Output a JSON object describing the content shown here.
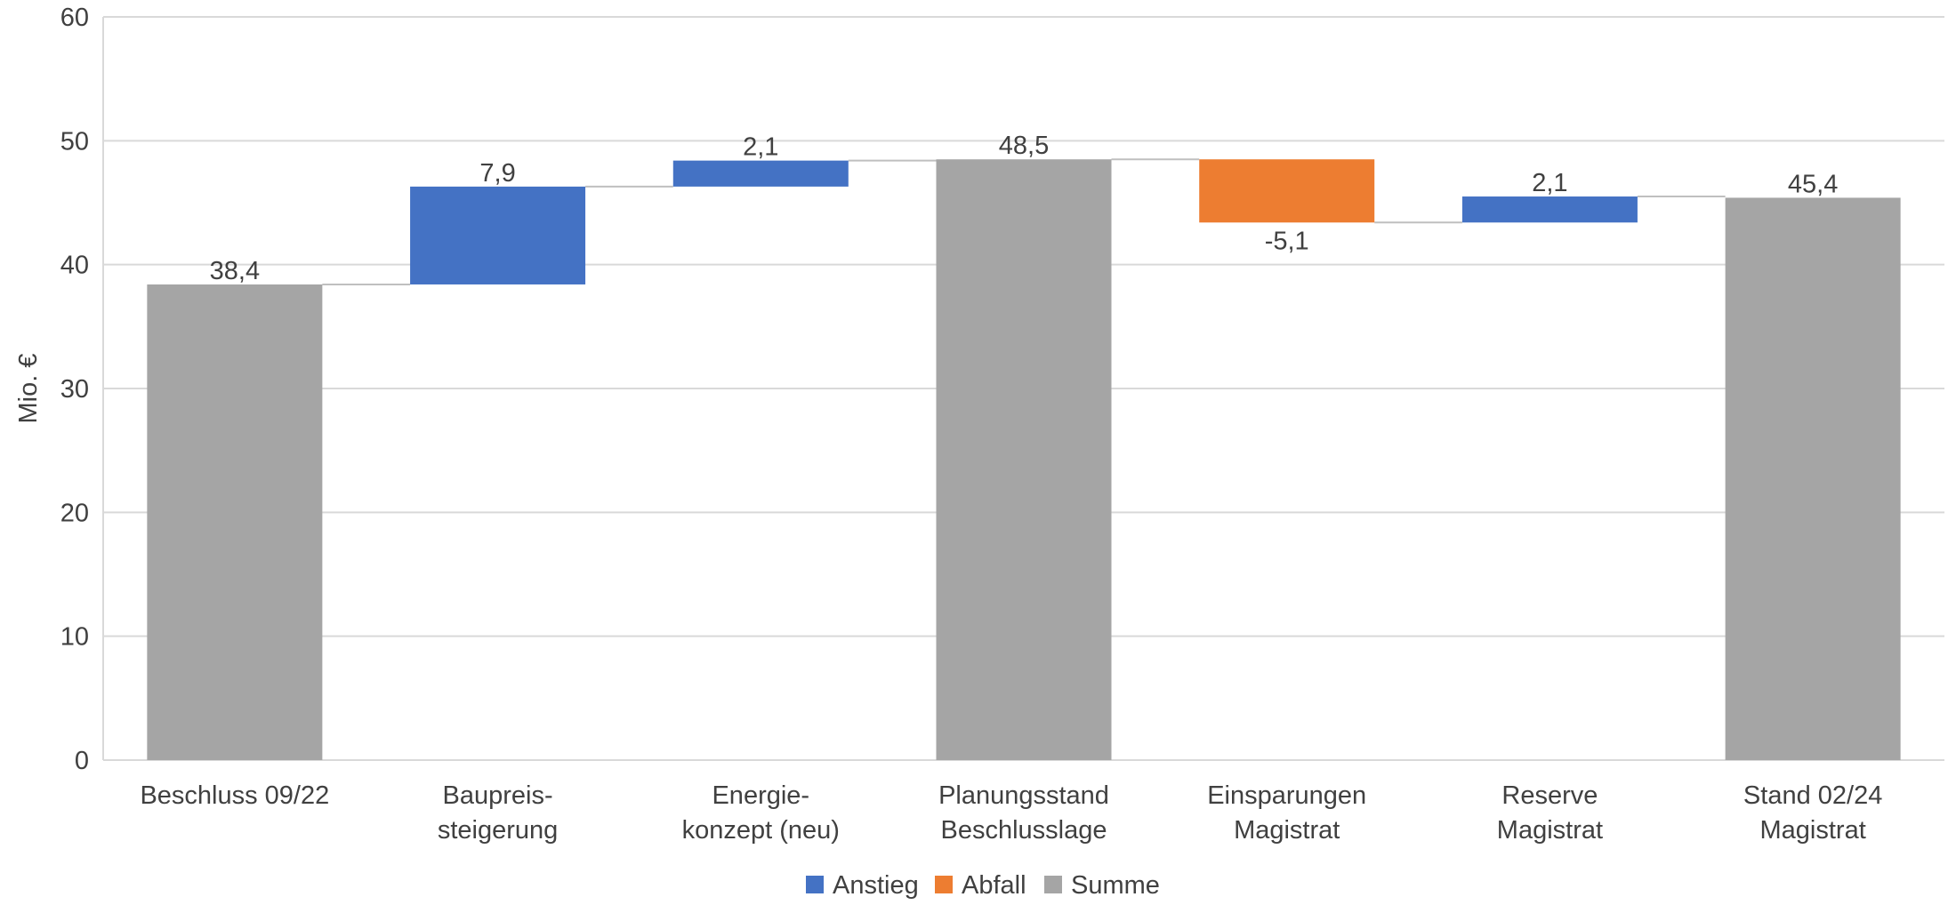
{
  "chart_data": {
    "type": "bar",
    "subtype": "waterfall",
    "title": "",
    "xlabel": "",
    "ylabel": "Mio. €",
    "ylim": [
      0,
      60
    ],
    "yticks": [
      0,
      10,
      20,
      30,
      40,
      50,
      60
    ],
    "grid": true,
    "legend_position": "bottom",
    "legend": [
      {
        "name": "Anstieg",
        "color": "#4472C4"
      },
      {
        "name": "Abfall",
        "color": "#ED7D31"
      },
      {
        "name": "Summe",
        "color": "#A5A5A5"
      }
    ],
    "categories": [
      [
        "Beschluss 09/22"
      ],
      [
        "Baupreis-",
        "steigerung"
      ],
      [
        "Energie-",
        "konzept (neu)"
      ],
      [
        "Planungsstand",
        "Beschlusslage"
      ],
      [
        "Einsparungen",
        "Magistrat"
      ],
      [
        "Reserve",
        "Magistrat"
      ],
      [
        "Stand 02/24",
        "Magistrat"
      ]
    ],
    "values": [
      38.4,
      7.9,
      2.1,
      48.5,
      -5.1,
      2.1,
      45.4
    ],
    "kinds": [
      "total",
      "increase",
      "increase",
      "total",
      "decrease",
      "increase",
      "total"
    ],
    "value_labels": [
      "38,4",
      "7,9",
      "2,1",
      "48,5",
      "-5,1",
      "2,1",
      "45,4"
    ]
  }
}
